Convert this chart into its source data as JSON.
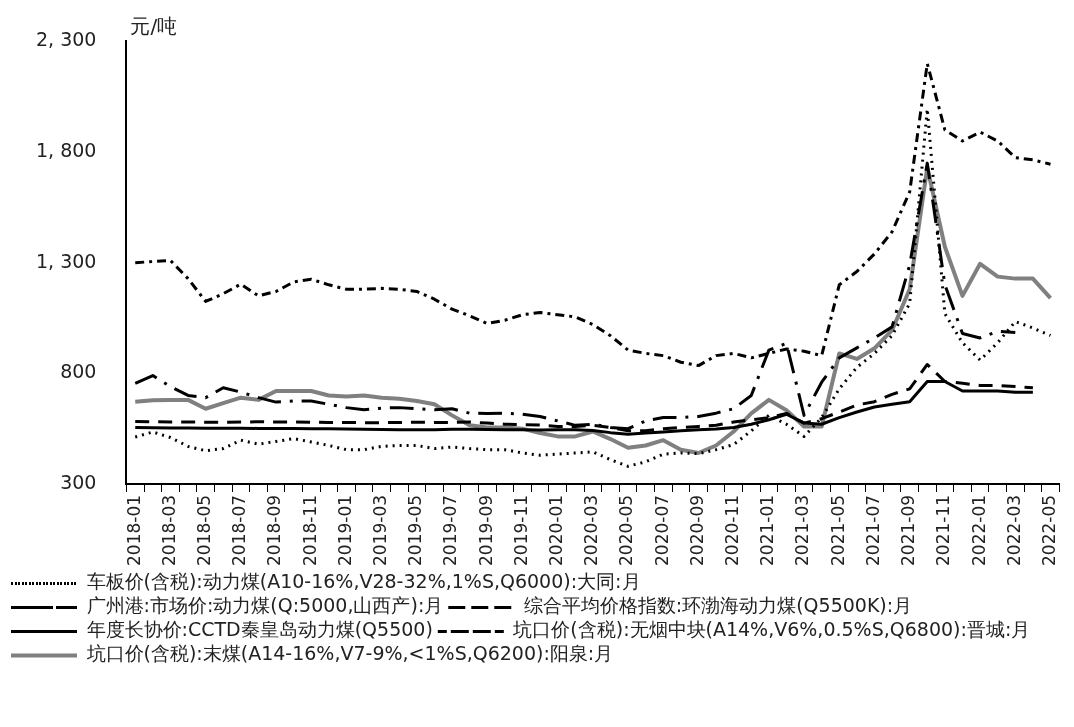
{
  "chart_data": {
    "type": "line",
    "ylabel": "元/吨",
    "categories": [
      "2018-01",
      null,
      "2018-03",
      null,
      "2018-05",
      null,
      "2018-07",
      null,
      "2018-09",
      null,
      "2018-11",
      null,
      "2019-01",
      null,
      "2019-03",
      null,
      "2019-05",
      null,
      "2019-07",
      null,
      "2019-09",
      null,
      "2019-11",
      null,
      "2020-01",
      null,
      "2020-03",
      null,
      "2020-05",
      null,
      "2020-07",
      null,
      "2020-09",
      null,
      "2020-11",
      null,
      "2021-01",
      null,
      "2021-03",
      null,
      "2021-05",
      null,
      "2021-07",
      null,
      "2021-09",
      null,
      "2021-11",
      null,
      "2022-01",
      null,
      "2022-03",
      null,
      "2022-05"
    ],
    "ylim": [
      300,
      2300
    ],
    "yticks": [
      300,
      {
        "value": 800,
        "label": "800"
      },
      {
        "value": 1300,
        "label": "1, 300"
      },
      {
        "value": 1800,
        "label": "1, 800"
      },
      {
        "value": 2300,
        "label": "2, 300"
      }
    ],
    "legend": "bottom",
    "marker": "none",
    "series": [
      {
        "name": "车板价(含税):动力煤(A10-16%,V28-32%,1%S,Q6000):大同:月",
        "color": "#000000",
        "line_style": "dotted",
        "values": [
          512,
          535,
          510,
          470,
          450,
          460,
          498,
          480,
          492,
          505,
          490,
          474,
          455,
          455,
          470,
          474,
          474,
          460,
          467,
          460,
          455,
          455,
          440,
          430,
          435,
          440,
          445,
          410,
          380,
          400,
          435,
          440,
          437,
          455,
          478,
          540,
          610,
          570,
          515,
          600,
          730,
          827,
          890,
          971,
          1116,
          1995,
          1070,
          938,
          860,
          938,
          1034,
          1005,
          971
        ]
      },
      {
        "name": "广州港:市场价:动力煤(Q:5000,山西产):月",
        "color": "#000000",
        "line_style": "longdashdot",
        "values": [
          755,
          790,
          740,
          700,
          690,
          735,
          715,
          690,
          670,
          675,
          675,
          660,
          645,
          635,
          643,
          645,
          640,
          635,
          640,
          620,
          619,
          620,
          615,
          605,
          585,
          565,
          570,
          555,
          550,
          585,
          600,
          600,
          605,
          620,
          640,
          700,
          905,
          935,
          610,
          760,
          870,
          915,
          960,
          1010,
          1290,
          1750,
          1200,
          980,
          960,
          990,
          985,
          null,
          null
        ]
      },
      {
        "name": "综合平均价格指数:环渤海动力煤(Q5500K):月",
        "color": "#000000",
        "line_style": "dashed",
        "values": [
          582,
          581,
          580,
          580,
          579,
          579,
          580,
          581,
          580,
          580,
          579,
          578,
          578,
          577,
          577,
          578,
          579,
          578,
          578,
          580,
          575,
          570,
          568,
          567,
          560,
          560,
          565,
          555,
          540,
          540,
          550,
          555,
          560,
          565,
          580,
          590,
          600,
          619,
          575,
          595,
          625,
          657,
          672,
          705,
          730,
          840,
          763,
          755,
          745,
          745,
          740,
          735,
          null
        ]
      },
      {
        "name": "年度长协价:CCTD秦皇岛动力煤(Q5500)",
        "color": "#000000",
        "line_style": "solid",
        "values": [
          555,
          554,
          553,
          553,
          552,
          552,
          552,
          551,
          551,
          551,
          550,
          550,
          548,
          547,
          546,
          545,
          545,
          545,
          547,
          547,
          546,
          545,
          545,
          544,
          545,
          545,
          542,
          532,
          525,
          530,
          535,
          540,
          545,
          548,
          555,
          570,
          590,
          615,
          575,
          570,
          600,
          625,
          648,
          660,
          672,
          763,
          763,
          720,
          720,
          720,
          715,
          715,
          null
        ]
      },
      {
        "name": "坑口价(含税):无烟中块(A14%,V6%,0.5%S,Q6800):晋城:月",
        "color": "#000000",
        "line_style": "dashdot",
        "values": [
          1300,
          1305,
          1310,
          1228,
          1125,
          1160,
          1203,
          1150,
          1170,
          1213,
          1225,
          1200,
          1180,
          1180,
          1184,
          1180,
          1170,
          1135,
          1090,
          1060,
          1025,
          1040,
          1065,
          1075,
          1065,
          1055,
          1020,
          970,
          905,
          890,
          880,
          850,
          835,
          880,
          890,
          870,
          890,
          910,
          900,
          880,
          1200,
          1260,
          1340,
          1440,
          1620,
          2200,
          1900,
          1850,
          1890,
          1850,
          1775,
          1765,
          1745
        ]
      },
      {
        "name": "坑口价(含税):末煤(A14-16%,V7-9%,<1%S,Q6200):阳泉:月",
        "color": "#808080",
        "line_style": "solid",
        "values": [
          672,
          678,
          680,
          680,
          640,
          665,
          690,
          680,
          720,
          720,
          720,
          700,
          695,
          700,
          690,
          685,
          675,
          660,
          610,
          565,
          555,
          555,
          550,
          530,
          515,
          515,
          537,
          503,
          464,
          474,
          498,
          455,
          440,
          474,
          537,
          619,
          680,
          633,
          560,
          560,
          890,
          865,
          913,
          995,
          1180,
          1730,
          1372,
          1150,
          1295,
          1237,
          1228,
          1228,
          1140
        ]
      }
    ]
  }
}
